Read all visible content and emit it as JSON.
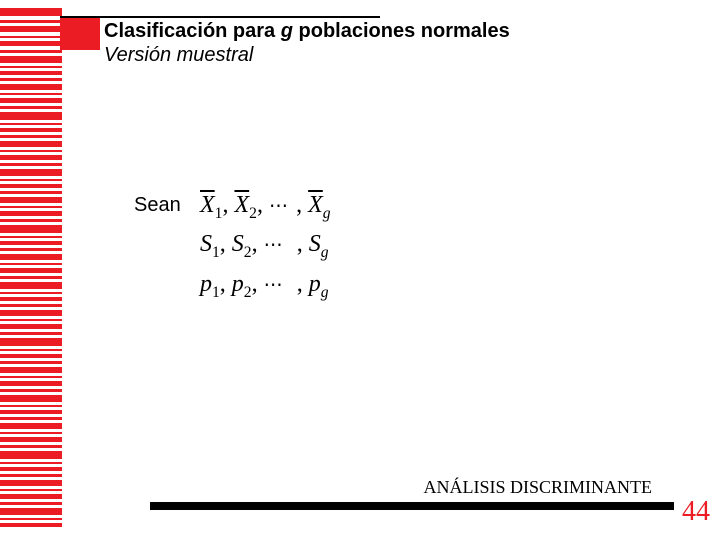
{
  "header": {
    "title_pre": "Clasificación para ",
    "title_em": "g",
    "title_post": " poblaciones normales",
    "subtitle": "Versión muestral"
  },
  "body": {
    "lead": "Sean",
    "math_rows": {
      "r1": {
        "x1": "X",
        "s1": "1",
        "x2": "X",
        "s2": "2",
        "xg": "X",
        "sg": "g"
      },
      "r2": {
        "x1": "S",
        "s1": "1",
        "x2": "S",
        "s2": "2",
        "xg": "S",
        "sg": "g"
      },
      "r3": {
        "x1": "p",
        "s1": "1",
        "x2": "p",
        "s2": "2",
        "xg": "p",
        "sg": "g"
      }
    }
  },
  "footer": {
    "label": "ANÁLISIS DISCRIMINANTE",
    "page": "44"
  },
  "style": {
    "accent": "#ec1c24",
    "stripes": [
      {
        "t": 0,
        "h": 8
      },
      {
        "t": 12,
        "h": 3
      },
      {
        "t": 18,
        "h": 6
      },
      {
        "t": 28,
        "h": 2
      },
      {
        "t": 33,
        "h": 5
      },
      {
        "t": 42,
        "h": 3
      },
      {
        "t": 48,
        "h": 7
      },
      {
        "t": 58,
        "h": 2
      },
      {
        "t": 63,
        "h": 4
      },
      {
        "t": 70,
        "h": 3
      },
      {
        "t": 76,
        "h": 6
      },
      {
        "t": 85,
        "h": 2
      },
      {
        "t": 90,
        "h": 5
      },
      {
        "t": 98,
        "h": 3
      },
      {
        "t": 104,
        "h": 8
      },
      {
        "t": 115,
        "h": 2
      },
      {
        "t": 120,
        "h": 4
      },
      {
        "t": 127,
        "h": 3
      },
      {
        "t": 133,
        "h": 6
      },
      {
        "t": 142,
        "h": 2
      },
      {
        "t": 147,
        "h": 5
      },
      {
        "t": 155,
        "h": 3
      },
      {
        "t": 161,
        "h": 7
      },
      {
        "t": 171,
        "h": 2
      },
      {
        "t": 176,
        "h": 4
      },
      {
        "t": 183,
        "h": 3
      },
      {
        "t": 189,
        "h": 6
      },
      {
        "t": 198,
        "h": 2
      },
      {
        "t": 203,
        "h": 5
      },
      {
        "t": 211,
        "h": 3
      },
      {
        "t": 217,
        "h": 8
      },
      {
        "t": 228,
        "h": 2
      },
      {
        "t": 233,
        "h": 4
      },
      {
        "t": 240,
        "h": 3
      },
      {
        "t": 246,
        "h": 6
      },
      {
        "t": 255,
        "h": 2
      },
      {
        "t": 260,
        "h": 5
      },
      {
        "t": 268,
        "h": 3
      },
      {
        "t": 274,
        "h": 7
      },
      {
        "t": 284,
        "h": 2
      },
      {
        "t": 289,
        "h": 4
      },
      {
        "t": 296,
        "h": 3
      },
      {
        "t": 302,
        "h": 6
      },
      {
        "t": 311,
        "h": 2
      },
      {
        "t": 316,
        "h": 5
      },
      {
        "t": 324,
        "h": 3
      },
      {
        "t": 330,
        "h": 8
      },
      {
        "t": 341,
        "h": 2
      },
      {
        "t": 346,
        "h": 4
      },
      {
        "t": 353,
        "h": 3
      },
      {
        "t": 359,
        "h": 6
      },
      {
        "t": 368,
        "h": 2
      },
      {
        "t": 373,
        "h": 5
      },
      {
        "t": 381,
        "h": 3
      },
      {
        "t": 387,
        "h": 7
      },
      {
        "t": 397,
        "h": 2
      },
      {
        "t": 402,
        "h": 4
      },
      {
        "t": 409,
        "h": 3
      },
      {
        "t": 415,
        "h": 6
      },
      {
        "t": 424,
        "h": 2
      },
      {
        "t": 429,
        "h": 5
      },
      {
        "t": 437,
        "h": 3
      },
      {
        "t": 443,
        "h": 8
      },
      {
        "t": 454,
        "h": 2
      },
      {
        "t": 459,
        "h": 4
      },
      {
        "t": 466,
        "h": 3
      },
      {
        "t": 472,
        "h": 6
      },
      {
        "t": 481,
        "h": 2
      },
      {
        "t": 486,
        "h": 5
      },
      {
        "t": 494,
        "h": 3
      },
      {
        "t": 500,
        "h": 7
      },
      {
        "t": 510,
        "h": 2
      },
      {
        "t": 515,
        "h": 4
      }
    ]
  }
}
